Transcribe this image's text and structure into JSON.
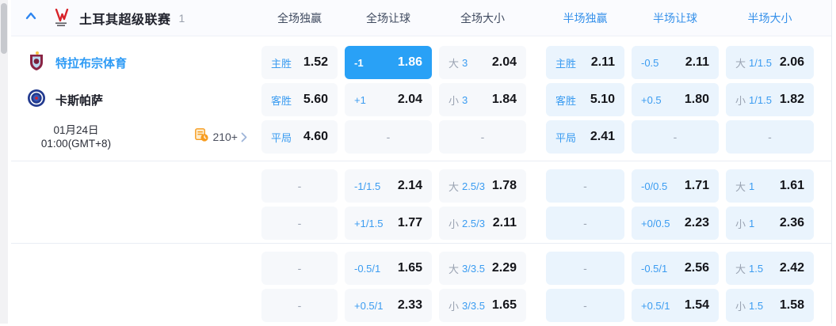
{
  "header": {
    "league_name": "土耳其超级联赛",
    "match_count": "1",
    "columns": [
      "全场独赢",
      "全场让球",
      "全场大小",
      "半场独赢",
      "半场让球",
      "半场大小"
    ]
  },
  "match": {
    "home_team": "特拉布宗体育",
    "away_team": "卡斯帕萨",
    "date": "01月24日",
    "time": "01:00(GMT+8)",
    "more_markets_count": "210+"
  },
  "odds": {
    "empty": "-",
    "sections": [
      [
        [
          {
            "kind": "1x2",
            "label": "主胜",
            "value": "1.52"
          },
          {
            "kind": "hcp",
            "label": "-1",
            "value": "1.86",
            "selected": true
          },
          {
            "kind": "ou",
            "side": "大",
            "line": "3",
            "value": "2.04"
          },
          {
            "kind": "1x2",
            "label": "主胜",
            "value": "2.11"
          },
          {
            "kind": "hcp",
            "label": "-0.5",
            "value": "2.11"
          },
          {
            "kind": "ou",
            "side": "大",
            "line": "1/1.5",
            "value": "2.06"
          }
        ],
        [
          {
            "kind": "1x2",
            "label": "客胜",
            "value": "5.60"
          },
          {
            "kind": "hcp",
            "label": "+1",
            "value": "2.04"
          },
          {
            "kind": "ou",
            "side": "小",
            "line": "3",
            "value": "1.84"
          },
          {
            "kind": "1x2",
            "label": "客胜",
            "value": "5.10"
          },
          {
            "kind": "hcp",
            "label": "+0.5",
            "value": "1.80"
          },
          {
            "kind": "ou",
            "side": "小",
            "line": "1/1.5",
            "value": "1.82"
          }
        ],
        [
          {
            "kind": "1x2",
            "label": "平局",
            "value": "4.60"
          },
          {
            "kind": "dash"
          },
          {
            "kind": "dash"
          },
          {
            "kind": "1x2",
            "label": "平局",
            "value": "2.41"
          },
          {
            "kind": "dash"
          },
          {
            "kind": "dash"
          }
        ]
      ],
      [
        [
          {
            "kind": "dash"
          },
          {
            "kind": "hcp",
            "label": "-1/1.5",
            "value": "2.14"
          },
          {
            "kind": "ou",
            "side": "大",
            "line": "2.5/3",
            "value": "1.78"
          },
          {
            "kind": "dash"
          },
          {
            "kind": "hcp",
            "label": "-0/0.5",
            "value": "1.71"
          },
          {
            "kind": "ou",
            "side": "大",
            "line": "1",
            "value": "1.61"
          }
        ],
        [
          {
            "kind": "dash"
          },
          {
            "kind": "hcp",
            "label": "+1/1.5",
            "value": "1.77"
          },
          {
            "kind": "ou",
            "side": "小",
            "line": "2.5/3",
            "value": "2.11"
          },
          {
            "kind": "dash"
          },
          {
            "kind": "hcp",
            "label": "+0/0.5",
            "value": "2.23"
          },
          {
            "kind": "ou",
            "side": "小",
            "line": "1",
            "value": "2.36"
          }
        ]
      ],
      [
        [
          {
            "kind": "dash"
          },
          {
            "kind": "hcp",
            "label": "-0.5/1",
            "value": "1.65"
          },
          {
            "kind": "ou",
            "side": "大",
            "line": "3/3.5",
            "value": "2.29"
          },
          {
            "kind": "dash"
          },
          {
            "kind": "hcp",
            "label": "-0.5/1",
            "value": "2.56"
          },
          {
            "kind": "ou",
            "side": "大",
            "line": "1.5",
            "value": "2.42"
          }
        ],
        [
          {
            "kind": "dash"
          },
          {
            "kind": "hcp",
            "label": "+0.5/1",
            "value": "2.33"
          },
          {
            "kind": "ou",
            "side": "小",
            "line": "3/3.5",
            "value": "1.65"
          },
          {
            "kind": "dash"
          },
          {
            "kind": "hcp",
            "label": "+0.5/1",
            "value": "1.54"
          },
          {
            "kind": "ou",
            "side": "小",
            "line": "1.5",
            "value": "1.58"
          }
        ]
      ]
    ]
  },
  "colors": {
    "accent_blue": "#2e9bf5",
    "selected_cell_bg": "#29a1f6",
    "fulltime_cell_bg": "#f6f8fb",
    "halftime_cell_bg": "#eaf4fd",
    "halftime_header_text": "#3590ea",
    "odds_text": "#14151a",
    "muted_gray": "#9aa3b2",
    "more_icon_orange": "#f79b1d"
  }
}
